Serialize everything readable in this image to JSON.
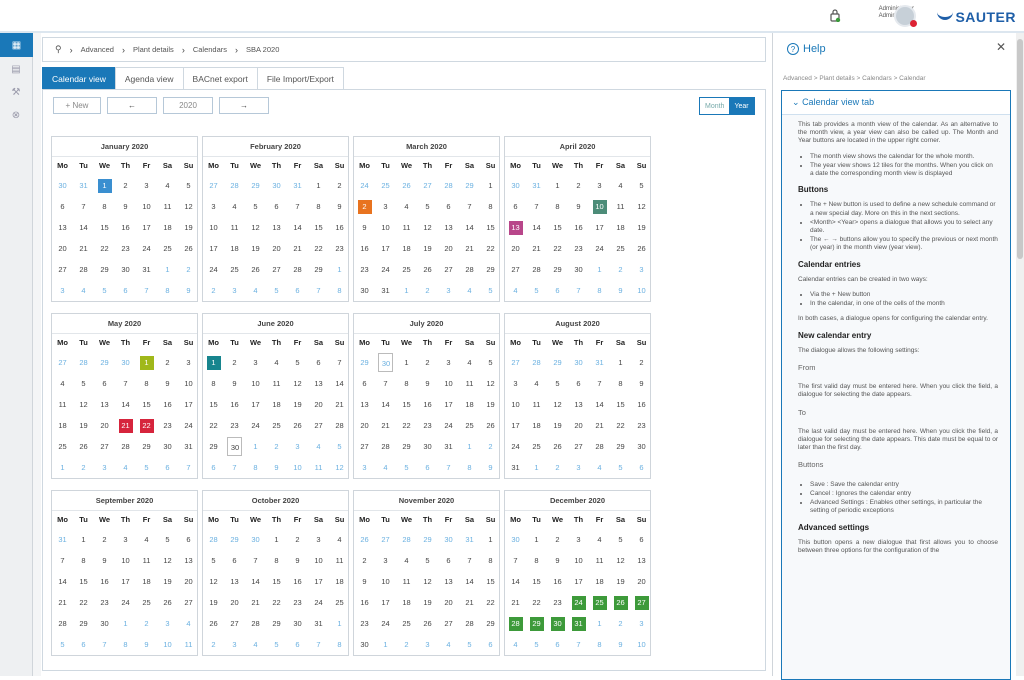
{
  "topbar": {
    "user_line1": "Administrator",
    "user_line2": "Administrator",
    "logo": "SAUTER"
  },
  "breadcrumb": [
    "Advanced",
    "Plant details",
    "Calendars",
    "SBA 2020"
  ],
  "tabs": [
    "Calendar view",
    "Agenda view",
    "BACnet export",
    "File Import/Export"
  ],
  "controls": {
    "new_label": "+ New",
    "prev": "←",
    "year": "2020",
    "next": "→"
  },
  "view_toggle": {
    "month": "Month",
    "year": "Year"
  },
  "weekdays": [
    "Mo",
    "Tu",
    "We",
    "Th",
    "Fr",
    "Sa",
    "Su"
  ],
  "colors": {
    "accent": "#1a78b8",
    "blue": "#3a8fd0",
    "orange": "#e8731f",
    "green": "#3d9a3a",
    "lime": "#a0b81a",
    "magenta": "#b8468a",
    "red": "#d6243c",
    "teal": "#17858e",
    "slate": "#4c8c78"
  },
  "months": [
    {
      "name": "January 2020",
      "start": 2,
      "days": 31,
      "prev": 31,
      "marks": {
        "1": "blue"
      }
    },
    {
      "name": "February 2020",
      "start": 5,
      "days": 29,
      "prev": 31,
      "marks": {}
    },
    {
      "name": "March 2020",
      "start": 6,
      "days": 31,
      "prev": 29,
      "marks": {
        "2": "orange"
      }
    },
    {
      "name": "April 2020",
      "start": 2,
      "days": 30,
      "prev": 31,
      "marks": {
        "10": "slate",
        "13": "magenta"
      }
    },
    {
      "name": "May 2020",
      "start": 4,
      "days": 31,
      "prev": 30,
      "marks": {
        "1": "lime",
        "21": "red",
        "22": "red"
      }
    },
    {
      "name": "June 2020",
      "start": 0,
      "days": 30,
      "prev": 31,
      "marks": {
        "1": "teal"
      },
      "today": 30
    },
    {
      "name": "July 2020",
      "start": 2,
      "days": 31,
      "prev": 30,
      "marks": {},
      "todayPrev": 30
    },
    {
      "name": "August 2020",
      "start": 5,
      "days": 31,
      "prev": 31,
      "marks": {}
    },
    {
      "name": "September 2020",
      "start": 1,
      "days": 30,
      "prev": 31,
      "marks": {}
    },
    {
      "name": "October 2020",
      "start": 3,
      "days": 31,
      "prev": 30,
      "marks": {}
    },
    {
      "name": "November 2020",
      "start": 6,
      "days": 30,
      "prev": 31,
      "marks": {}
    },
    {
      "name": "December 2020",
      "start": 1,
      "days": 31,
      "prev": 30,
      "marks": {
        "24": "green",
        "25": "green",
        "26": "green",
        "27": "green",
        "28": "green",
        "29": "green",
        "30": "green",
        "31": "green"
      }
    }
  ],
  "help": {
    "title": "Help",
    "breadcrumb": "Advanced > Plant details > Calendars > Calendar",
    "section_title": "Calendar view tab",
    "intro": "This tab provides a month view of the calendar. As an alternative to the month view, a year view can also be called up. The Month and Year buttons are located in the upper right corner.",
    "bullets1": [
      "The month view shows the calendar for the whole month.",
      "The year view shows 12 tiles for the months. When you click on a date the corresponding month view is displayed"
    ],
    "h_buttons": "Buttons",
    "bullets2": [
      "The + New button is used to define a new schedule command or a new special day. More on this in the next sections.",
      "<Month> <Year> opens a dialogue that allows you to select any date.",
      "The ← → buttons allow you to specify the previous or next month (or year) in the month view (year view)."
    ],
    "h_entries": "Calendar entries",
    "entries_text": "Calendar entries can be created in two ways:",
    "bullets3": [
      "Via the + New button",
      "In the calendar, in one of the cells of the month"
    ],
    "dialog_text": "In both cases, a dialogue opens for configuring the calendar entry.",
    "h_new": "New calendar entry",
    "new_text": "The dialogue allows the following settings:",
    "from": "From",
    "from_text": "The first valid day must be entered here. When you click the field, a dialogue for selecting the date appears.",
    "to": "To",
    "to_text": "The last valid day must be entered here. When you click the field, a dialogue for selecting the date appears. This date must be equal to or later than the first day.",
    "buttons_sub": "Buttons",
    "bullets4": [
      "Save : Save the calendar entry",
      "Cancel : Ignores the calendar entry",
      "Advanced Settings : Enables other settings, in particular the setting of periodic exceptions"
    ],
    "h_adv": "Advanced settings",
    "adv_text": "This button opens a new dialogue that first allows you to choose between three options for the configuration of the"
  }
}
